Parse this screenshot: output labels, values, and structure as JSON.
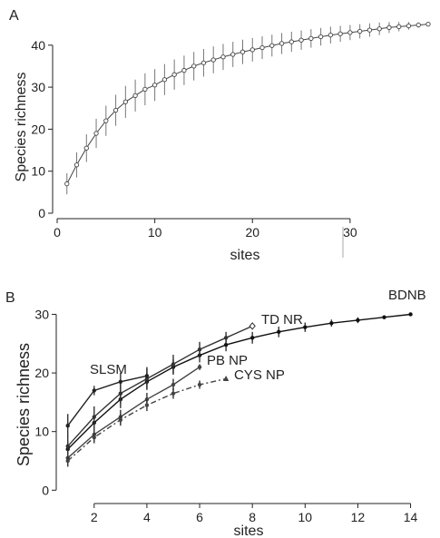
{
  "chart_data": [
    {
      "panel_label": "A",
      "type": "line",
      "xlabel": "sites",
      "ylabel": "Species richness",
      "xlim": [
        0,
        38
      ],
      "ylim": [
        0,
        46
      ],
      "xticks": [
        0,
        10,
        20,
        30
      ],
      "yticks": [
        0,
        10,
        20,
        30,
        40
      ],
      "series": [
        {
          "x": [
            1,
            2,
            3,
            4,
            5,
            6,
            7,
            8,
            9,
            10,
            11,
            12,
            13,
            14,
            15,
            16,
            17,
            18,
            19,
            20,
            21,
            22,
            23,
            24,
            25,
            26,
            27,
            28,
            29,
            30,
            31,
            32,
            33,
            34,
            35,
            36,
            37,
            38
          ],
          "values": [
            7,
            11.5,
            15.5,
            19,
            22,
            24.5,
            26.5,
            28,
            29.5,
            30.5,
            31.8,
            33,
            34,
            35,
            35.8,
            36.5,
            37.2,
            37.8,
            38.4,
            38.9,
            39.4,
            39.9,
            40.4,
            40.8,
            41.2,
            41.6,
            42,
            42.4,
            42.7,
            43,
            43.3,
            43.6,
            43.9,
            44.2,
            44.4,
            44.6,
            44.8,
            45
          ],
          "error": [
            2.5,
            3,
            3.3,
            3.5,
            3.6,
            3.7,
            3.8,
            3.8,
            3.8,
            3.8,
            3.7,
            3.6,
            3.5,
            3.4,
            3.3,
            3.2,
            3.1,
            3,
            2.9,
            2.8,
            2.7,
            2.6,
            2.5,
            2.4,
            2.3,
            2.2,
            2.1,
            2,
            1.9,
            1.8,
            1.7,
            1.6,
            1.5,
            1.3,
            1.1,
            0.9,
            0.6,
            0.3
          ]
        }
      ]
    },
    {
      "panel_label": "B",
      "type": "line",
      "xlabel": "sites",
      "ylabel": "Species richness",
      "xlim": [
        0.7,
        14.6
      ],
      "ylim": [
        -1.5,
        31
      ],
      "xticks": [
        2,
        4,
        6,
        8,
        10,
        12,
        14
      ],
      "yticks": [
        0,
        10,
        20,
        30
      ],
      "series": [
        {
          "name": "BDNB",
          "x": [
            1,
            2,
            3,
            4,
            5,
            6,
            7,
            8,
            9,
            10,
            11,
            12,
            13,
            14
          ],
          "values": [
            7,
            11.5,
            15.5,
            18.5,
            21,
            23,
            24.8,
            26,
            27,
            27.8,
            28.5,
            29,
            29.5,
            30
          ],
          "error": [
            1.5,
            1.5,
            1.5,
            1.4,
            1.3,
            1.2,
            1.1,
            1,
            0.9,
            0.8,
            0.6,
            0.5,
            0.3,
            0.1
          ],
          "color": "#111111",
          "dash": "solid",
          "marker": "dot"
        },
        {
          "name": "TD NR",
          "x": [
            1,
            2,
            3,
            4,
            5,
            6,
            7,
            8
          ],
          "values": [
            7.5,
            12.5,
            16.5,
            19,
            21.5,
            24,
            26,
            28
          ],
          "error": [
            1.8,
            1.8,
            1.8,
            1.7,
            1.6,
            1.3,
            1,
            0.4
          ],
          "color": "#333333",
          "dash": "solid",
          "marker": "diamond"
        },
        {
          "name": "SLSM",
          "x": [
            1,
            2,
            3,
            4
          ],
          "values": [
            11,
            17,
            18.5,
            19.5
          ],
          "error": [
            2,
            0.8,
            1.5,
            1.5
          ],
          "color": "#222222",
          "dash": "solid",
          "marker": "dot"
        },
        {
          "name": "PB NP",
          "x": [
            1,
            2,
            3,
            4,
            5,
            6
          ],
          "values": [
            5.5,
            9.5,
            12.5,
            15.5,
            18,
            21
          ],
          "error": [
            1.2,
            1.2,
            1.2,
            1.1,
            1,
            0.5
          ],
          "color": "#444444",
          "dash": "solid",
          "marker": "dot"
        },
        {
          "name": "CYS NP",
          "x": [
            1,
            2,
            3,
            4,
            5,
            6,
            7
          ],
          "values": [
            5,
            9,
            12,
            14.5,
            16.5,
            18,
            19
          ],
          "error": [
            1,
            1,
            1,
            1,
            0.9,
            0.7,
            0.3
          ],
          "color": "#444444",
          "dash": "dashdot",
          "marker": "triangle"
        }
      ]
    }
  ]
}
